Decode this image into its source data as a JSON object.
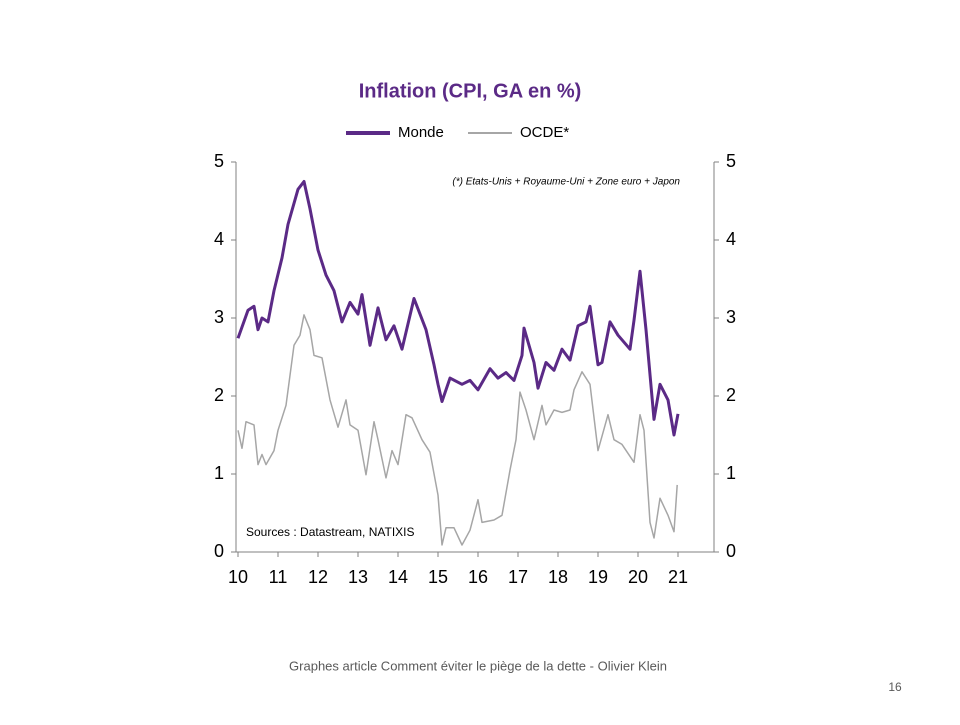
{
  "chart_data": {
    "type": "line",
    "title": "Inflation (CPI, GA en %)",
    "annotations": [
      "(*) Etats-Unis + Royaume-Uni + Zone euro + Japon",
      "Sources : Datastream,  NATIXIS"
    ],
    "xlim": [
      9.95,
      21.9
    ],
    "xticks": [
      10,
      11,
      12,
      13,
      14,
      15,
      16,
      17,
      18,
      19,
      20,
      21
    ],
    "ylim": [
      0,
      5
    ],
    "yticks": [
      0,
      1,
      2,
      3,
      4,
      5
    ],
    "y2lim": [
      0,
      5
    ],
    "y2ticks": [
      0,
      1,
      2,
      3,
      4,
      5
    ],
    "series": [
      {
        "name": "Monde",
        "color": "#5b2a86",
        "x": [
          10.0,
          10.25,
          10.4,
          10.5,
          10.6,
          10.75,
          10.9,
          11.1,
          11.25,
          11.5,
          11.65,
          11.8,
          12.0,
          12.2,
          12.4,
          12.6,
          12.8,
          13.0,
          13.1,
          13.3,
          13.5,
          13.7,
          13.9,
          14.1,
          14.4,
          14.7,
          14.9,
          15.0,
          15.1,
          15.3,
          15.6,
          15.8,
          16.0,
          16.3,
          16.5,
          16.7,
          16.9,
          17.1,
          17.15,
          17.4,
          17.5,
          17.7,
          17.9,
          18.1,
          18.3,
          18.5,
          18.7,
          18.8,
          19.0,
          19.1,
          19.3,
          19.5,
          19.8,
          19.9,
          20.05,
          20.2,
          20.4,
          20.55,
          20.75,
          20.9,
          21.0
        ],
        "values": [
          2.74,
          3.1,
          3.15,
          2.85,
          3.0,
          2.95,
          3.35,
          3.77,
          4.2,
          4.65,
          4.75,
          4.4,
          3.87,
          3.55,
          3.35,
          2.95,
          3.2,
          3.05,
          3.3,
          2.65,
          3.13,
          2.72,
          2.9,
          2.6,
          3.25,
          2.85,
          2.4,
          2.15,
          1.93,
          2.23,
          2.15,
          2.2,
          2.08,
          2.35,
          2.23,
          2.3,
          2.2,
          2.52,
          2.87,
          2.43,
          2.1,
          2.43,
          2.33,
          2.6,
          2.46,
          2.9,
          2.95,
          3.15,
          2.4,
          2.43,
          2.95,
          2.78,
          2.6,
          2.97,
          3.6,
          2.85,
          1.7,
          2.15,
          1.95,
          1.5,
          1.77
        ]
      },
      {
        "name": "OCDE*",
        "color": "#a6a6a6",
        "x": [
          10.0,
          10.1,
          10.2,
          10.4,
          10.5,
          10.6,
          10.7,
          10.9,
          11.0,
          11.2,
          11.4,
          11.55,
          11.65,
          11.8,
          11.9,
          12.1,
          12.3,
          12.5,
          12.7,
          12.8,
          13.0,
          13.2,
          13.4,
          13.5,
          13.7,
          13.85,
          14.0,
          14.2,
          14.35,
          14.6,
          14.8,
          15.0,
          15.1,
          15.2,
          15.4,
          15.6,
          15.8,
          16.0,
          16.1,
          16.4,
          16.6,
          16.8,
          16.95,
          17.05,
          17.2,
          17.4,
          17.6,
          17.7,
          17.9,
          18.1,
          18.3,
          18.4,
          18.6,
          18.8,
          19.0,
          19.25,
          19.4,
          19.6,
          19.9,
          20.05,
          20.15,
          20.3,
          20.4,
          20.55,
          20.75,
          20.9,
          20.98
        ],
        "values": [
          1.56,
          1.33,
          1.67,
          1.63,
          1.12,
          1.25,
          1.12,
          1.3,
          1.56,
          1.88,
          2.65,
          2.78,
          3.04,
          2.85,
          2.52,
          2.49,
          1.95,
          1.6,
          1.95,
          1.63,
          1.56,
          0.99,
          1.67,
          1.44,
          0.95,
          1.3,
          1.12,
          1.76,
          1.72,
          1.44,
          1.28,
          0.73,
          0.09,
          0.31,
          0.31,
          0.09,
          0.28,
          0.67,
          0.38,
          0.41,
          0.47,
          1.05,
          1.44,
          2.05,
          1.82,
          1.44,
          1.88,
          1.63,
          1.82,
          1.79,
          1.82,
          2.08,
          2.31,
          2.15,
          1.3,
          1.76,
          1.44,
          1.38,
          1.15,
          1.76,
          1.56,
          0.38,
          0.18,
          0.69,
          0.47,
          0.26,
          0.86
        ]
      }
    ]
  },
  "footer": {
    "caption": "Graphes article Comment  éviter le piège de la dette - Olivier Klein",
    "page": "16"
  }
}
